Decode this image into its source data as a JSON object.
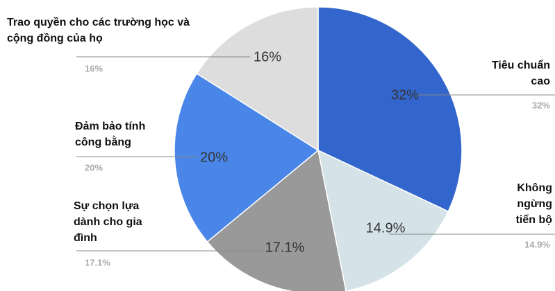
{
  "chart_data": {
    "type": "pie",
    "categories": [
      "Tiêu chuẩn cao",
      "Không ngừng tiến bộ",
      "Sự chọn lựa dành cho gia đình",
      "Đảm bảo tính công bằng",
      "Trao quyền cho các trường học và cộng đồng của họ"
    ],
    "values": [
      32,
      14.9,
      17.1,
      20,
      16
    ],
    "value_labels": [
      "32%",
      "14.9%",
      "17.1%",
      "20%",
      "16%"
    ],
    "colors": [
      "#3366cc",
      "#d5e3e8",
      "#999999",
      "#4a86e8",
      "#dddddd"
    ]
  }
}
